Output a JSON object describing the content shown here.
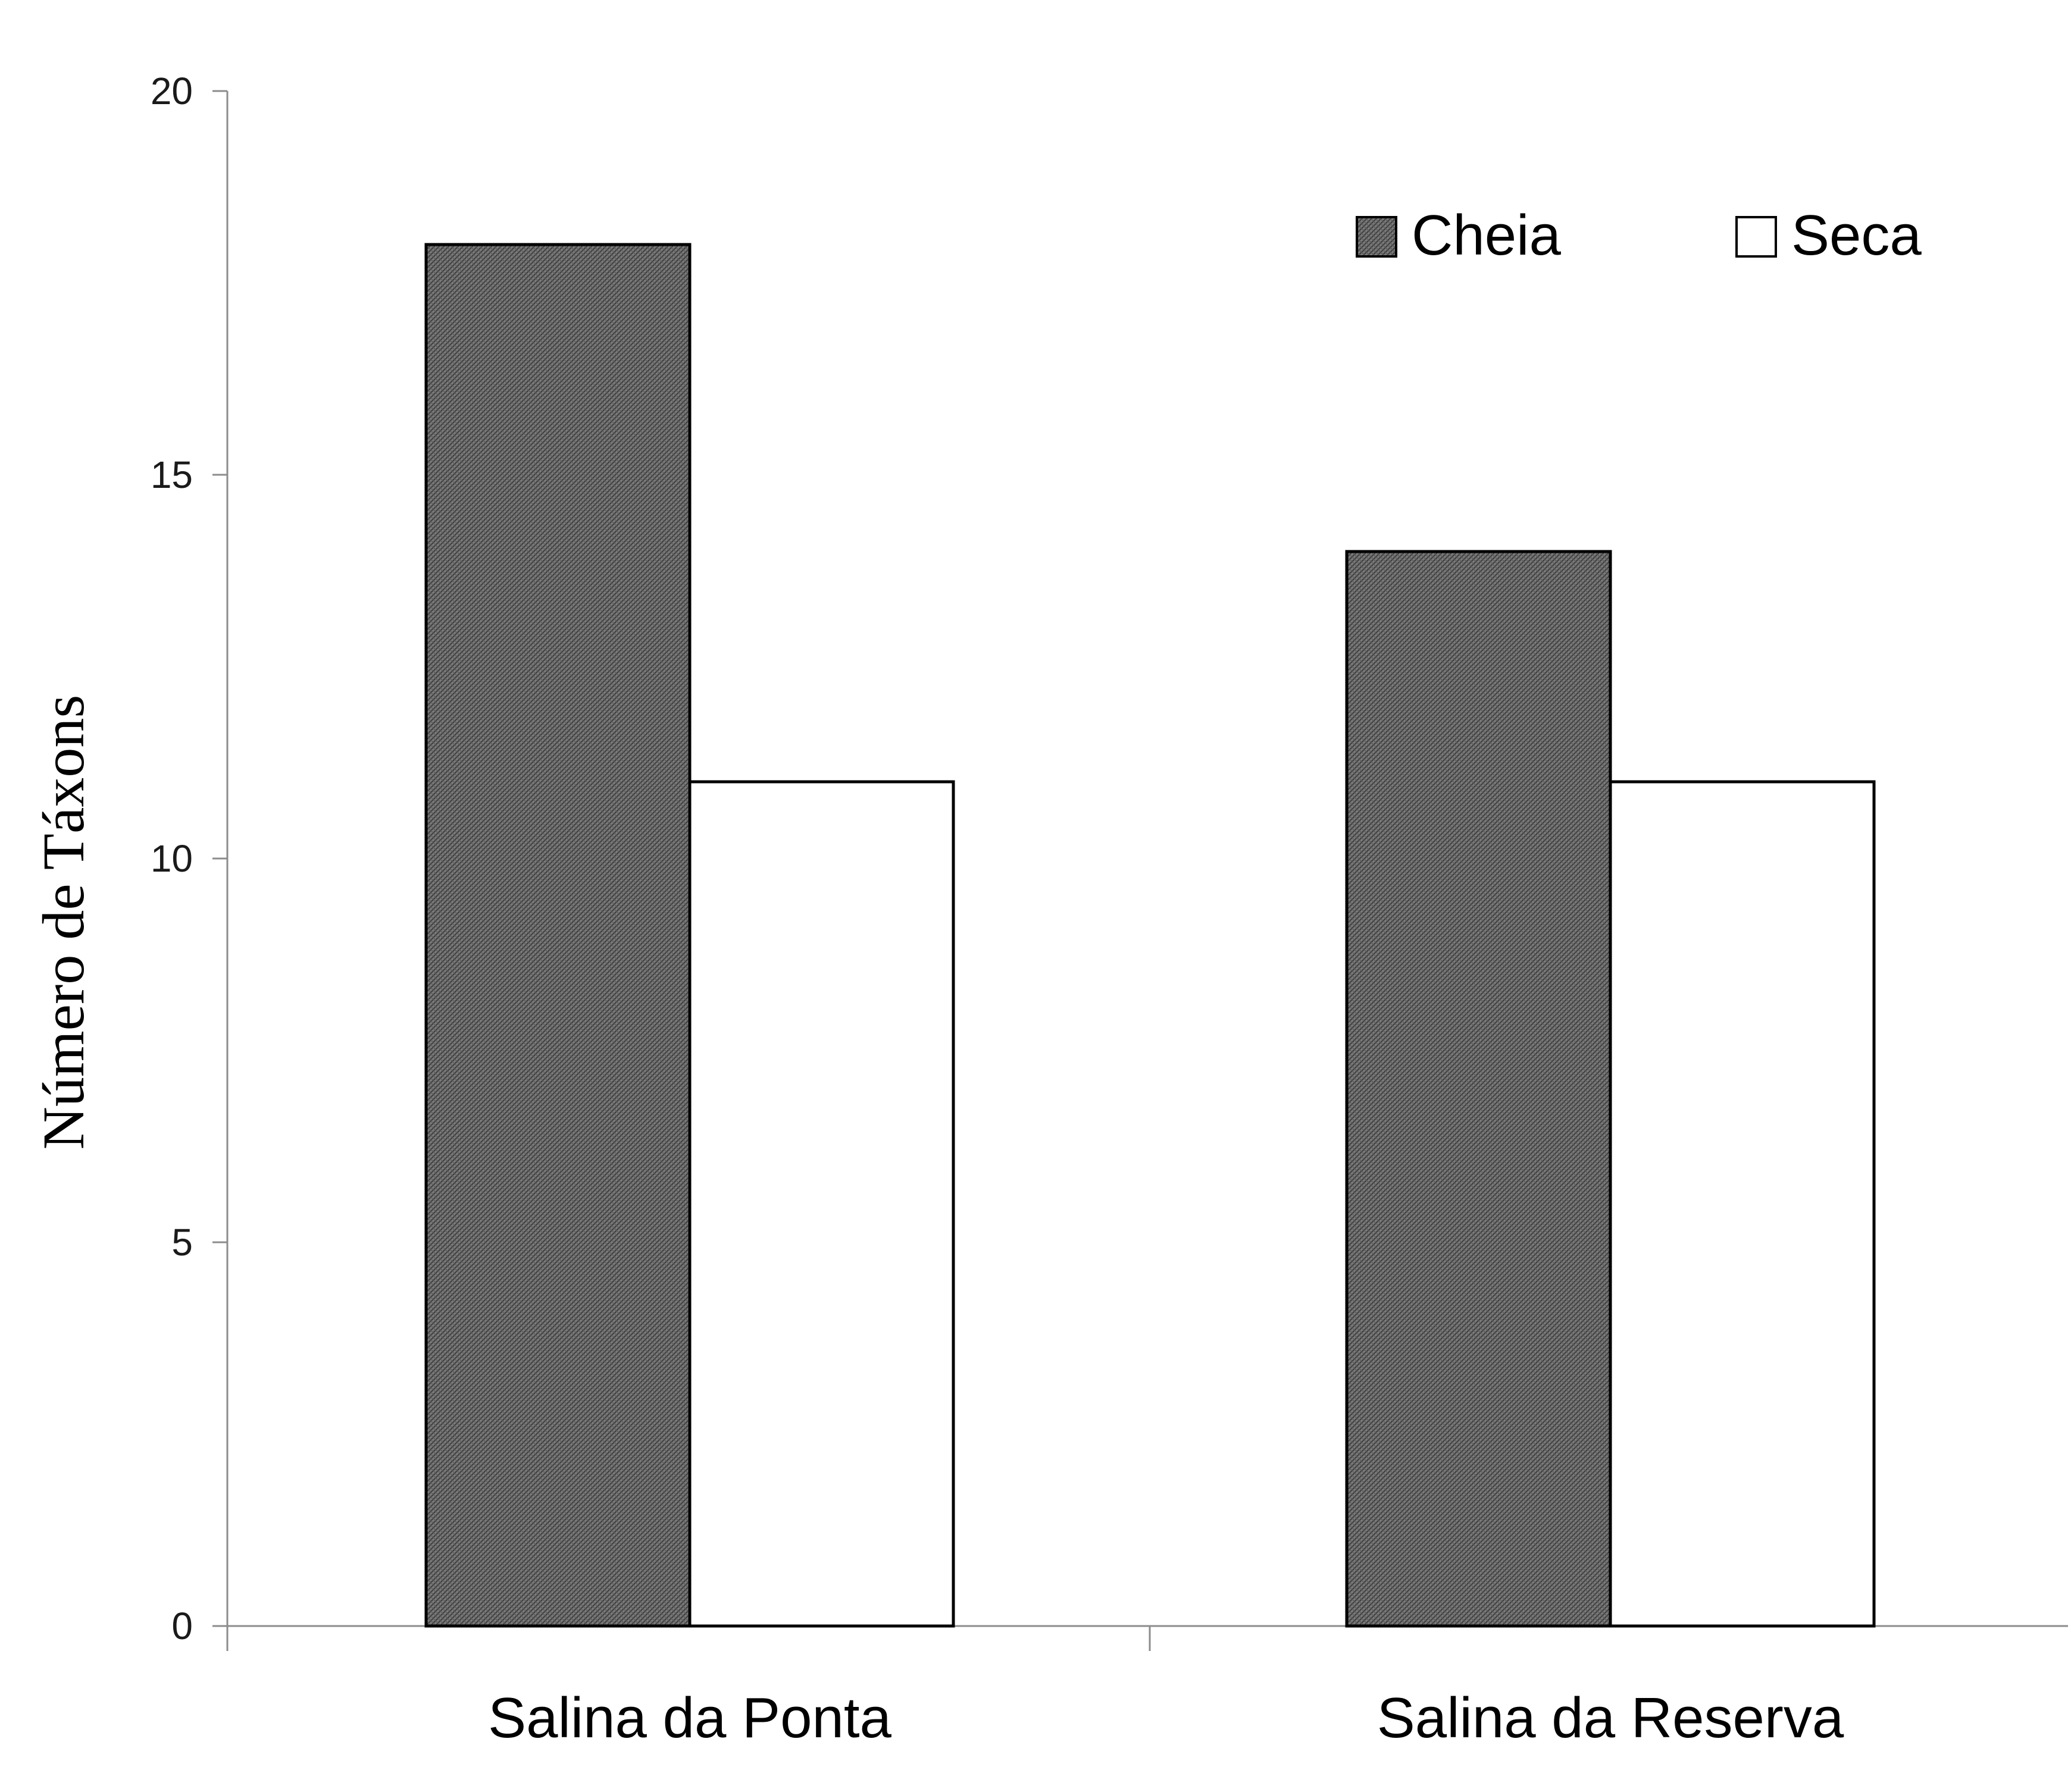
{
  "chart_data": {
    "type": "bar",
    "title": "",
    "xlabel": "",
    "ylabel": "Número de Táxons",
    "ylim": [
      0,
      20
    ],
    "yticks": [
      0,
      5,
      10,
      15,
      20
    ],
    "categories": [
      "Salina da Ponta",
      "Salina da Reserva"
    ],
    "series": [
      {
        "name": "Cheia",
        "values": [
          18,
          14
        ],
        "color": "#6e6e6e",
        "pattern": "crosshatch"
      },
      {
        "name": "Seca",
        "values": [
          11,
          11
        ],
        "color": "#ffffff",
        "pattern": "none"
      }
    ],
    "legend": {
      "position": "top-right"
    },
    "grid": false
  }
}
